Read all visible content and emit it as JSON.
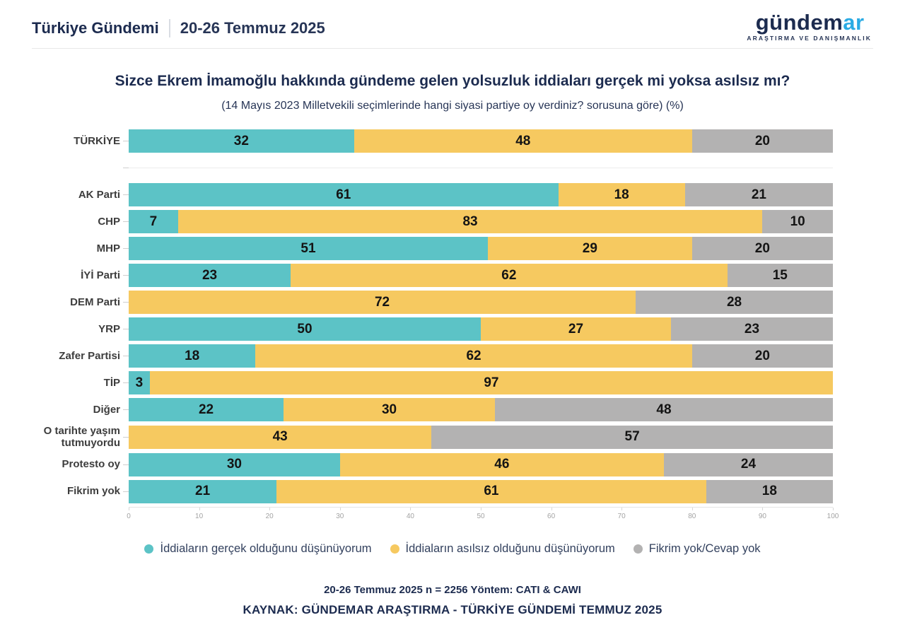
{
  "header": {
    "brand": "Türkiye Gündemi",
    "date_range": "20-26 Temmuz 2025"
  },
  "logo": {
    "part1": "gündem",
    "part2": "ar",
    "tagline": "ARAŞTIRMA VE DANIŞMANLIK",
    "accent_color": "#2aabe4"
  },
  "title": "Sizce Ekrem İmamoğlu hakkında gündeme gelen yolsuzluk iddiaları gerçek mi yoksa asılsız mı?",
  "subtitle": "(14 Mayıs 2023 Milletvekili seçimlerinde hangi siyasi partiye oy verdiniz? sorusuna göre) (%)",
  "chart_data": {
    "type": "bar",
    "orientation": "horizontal",
    "stacked": true,
    "title": "Sizce Ekrem İmamoğlu hakkında gündeme gelen yolsuzluk iddiaları gerçek mi yoksa asılsız mı?",
    "xlabel": "",
    "ylabel": "",
    "xlim": [
      0,
      100
    ],
    "x_ticks": [
      0,
      10,
      20,
      30,
      40,
      50,
      60,
      70,
      80,
      90,
      100
    ],
    "grid": false,
    "legend_position": "bottom",
    "divider_after_category_index": 0,
    "categories": [
      "TÜRKİYE",
      "AK Parti",
      "CHP",
      "MHP",
      "İYİ Parti",
      "DEM Parti",
      "YRP",
      "Zafer Partisi",
      "TİP",
      "Diğer",
      "O tarihte yaşım tutmuyordu",
      "Protesto oy",
      "Fikrim yok"
    ],
    "series": [
      {
        "name": "İddiaların gerçek olduğunu düşünüyorum",
        "color": "#5cc3c6",
        "values": [
          32,
          61,
          7,
          51,
          23,
          0,
          50,
          18,
          3,
          22,
          0,
          30,
          21
        ]
      },
      {
        "name": "İddiaların asılsız olduğunu düşünüyorum",
        "color": "#f6c960",
        "values": [
          48,
          18,
          83,
          29,
          62,
          72,
          27,
          62,
          97,
          30,
          43,
          46,
          61
        ]
      },
      {
        "name": "Fikrim yok/Cevap yok",
        "color": "#b3b2b2",
        "values": [
          20,
          21,
          10,
          20,
          15,
          28,
          23,
          20,
          0,
          48,
          57,
          24,
          18
        ]
      }
    ]
  },
  "footer": {
    "methodology": "20-26 Temmuz 2025 n = 2256 Yöntem: CATI & CAWI",
    "source": "KAYNAK: GÜNDEMAR ARAŞTIRMA - TÜRKİYE GÜNDEMİ TEMMUZ 2025"
  }
}
